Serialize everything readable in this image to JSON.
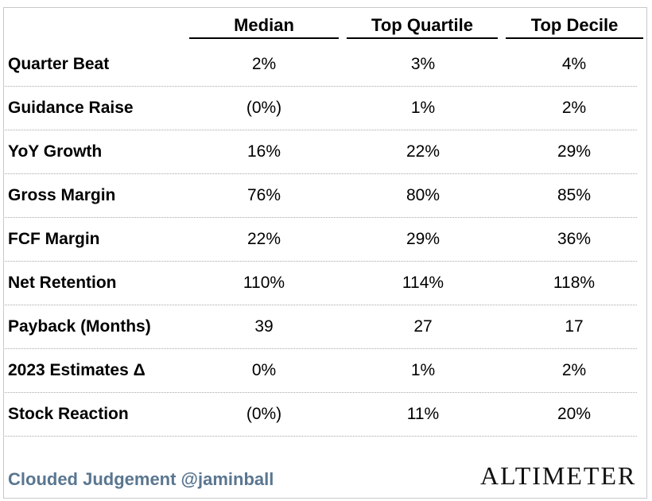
{
  "chart_data": {
    "type": "table",
    "columns": [
      "Median",
      "Top Quartile",
      "Top Decile"
    ],
    "rows": [
      {
        "label": "Quarter Beat",
        "values": [
          "2%",
          "3%",
          "4%"
        ]
      },
      {
        "label": "Guidance Raise",
        "values": [
          "(0%)",
          "1%",
          "2%"
        ]
      },
      {
        "label": "YoY Growth",
        "values": [
          "16%",
          "22%",
          "29%"
        ]
      },
      {
        "label": "Gross Margin",
        "values": [
          "76%",
          "80%",
          "85%"
        ]
      },
      {
        "label": "FCF Margin",
        "values": [
          "22%",
          "29%",
          "36%"
        ]
      },
      {
        "label": "Net Retention",
        "values": [
          "110%",
          "114%",
          "118%"
        ]
      },
      {
        "label": "Payback (Months)",
        "values": [
          "39",
          "27",
          "17"
        ]
      },
      {
        "label": "2023 Estimates Δ",
        "values": [
          "0%",
          "1%",
          "2%"
        ]
      },
      {
        "label": "Stock Reaction",
        "values": [
          "(0%)",
          "11%",
          "20%"
        ]
      }
    ]
  },
  "footer": {
    "credit": "Clouded Judgement @jaminball",
    "logo": "ALTIMETER"
  },
  "colors": {
    "credit": "#5a7690",
    "row_divider": "#a8a8a8"
  }
}
